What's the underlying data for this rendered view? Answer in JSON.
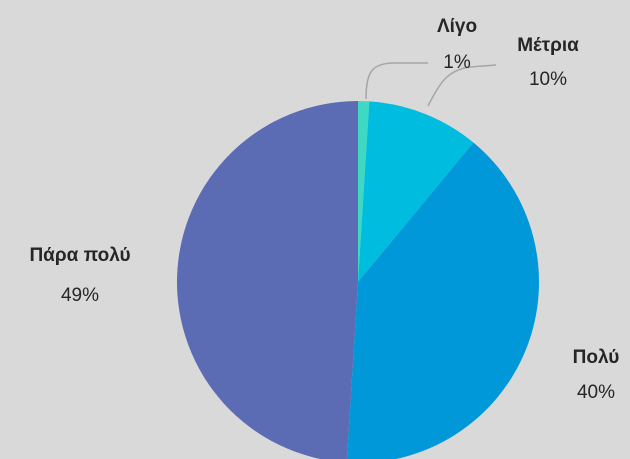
{
  "chart_data": {
    "type": "pie",
    "categories": [
      "Λίγο",
      "Μέτρια",
      "Πολύ",
      "Πάρα πολύ"
    ],
    "values": [
      1,
      10,
      40,
      49
    ],
    "value_labels": [
      "1%",
      "10%",
      "40%",
      "49%"
    ],
    "colors": [
      "#3ed8c3",
      "#00bde0",
      "#0098d8",
      "#5b6bb4"
    ]
  }
}
